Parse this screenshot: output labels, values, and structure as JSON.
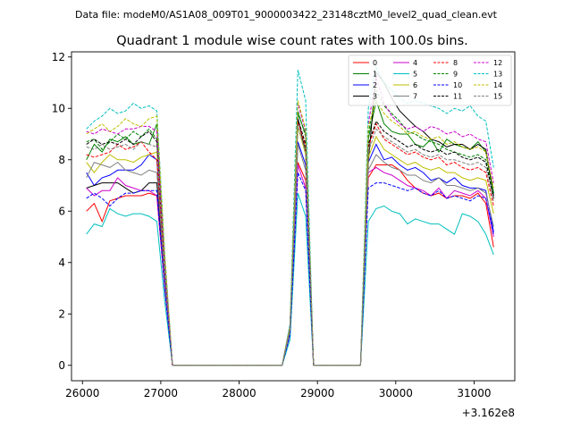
{
  "chart_data": {
    "type": "line",
    "suptitle": "Data file: modeM0/AS1A08_009T01_9000003422_23148cztM0_level2_quad_clean.evt",
    "title": "Quadrant 1 module wise count rates with 100.0s bins.",
    "xlabel": "",
    "ylabel": "",
    "x_offset_label": "+3.162e8",
    "xlim": [
      25860,
      31520
    ],
    "ylim": [
      -0.6,
      12.2
    ],
    "x_ticks": [
      26000,
      27000,
      28000,
      29000,
      30000,
      31000
    ],
    "x_tick_labels": [
      "26000",
      "27000",
      "28000",
      "29000",
      "30000",
      "31000"
    ],
    "y_ticks": [
      0,
      2,
      4,
      6,
      8,
      10,
      12
    ],
    "y_tick_labels": [
      "0",
      "2",
      "4",
      "6",
      "8",
      "10",
      "12"
    ],
    "legend_position": "top-right",
    "grid": false,
    "segments": [
      {
        "x": [
          26050,
          26150,
          26250,
          26350,
          26450,
          26550,
          26650,
          26750,
          26850,
          26950,
          27050,
          27150
        ]
      },
      {
        "x": [
          27150,
          28550
        ]
      },
      {
        "x": [
          28550,
          28650,
          28750,
          28850,
          28950
        ]
      },
      {
        "x": [
          28950,
          29550
        ]
      },
      {
        "x": [
          29550,
          29650,
          29750,
          29850,
          29950,
          30050,
          30150,
          30250,
          30350,
          30450,
          30550,
          30650,
          30750,
          30850,
          30950,
          31050,
          31150,
          31250
        ]
      }
    ],
    "series": [
      {
        "name": "0",
        "color": "#ff0000",
        "dash": "solid",
        "segments": [
          [
            6.0,
            6.3,
            5.6,
            6.4,
            6.5,
            6.6,
            6.6,
            6.6,
            6.7,
            6.6,
            3.0,
            0.0
          ],
          [
            0.0,
            0.0
          ],
          [
            0.0,
            1.5,
            7.9,
            7.2,
            0.0
          ],
          [
            0.0,
            0.0
          ],
          [
            0.0,
            7.3,
            7.8,
            7.8,
            7.8,
            7.6,
            7.2,
            6.9,
            6.7,
            6.6,
            6.7,
            6.5,
            6.6,
            6.6,
            6.5,
            6.7,
            6.3,
            4.6
          ]
        ]
      },
      {
        "name": "1",
        "color": "#008000",
        "dash": "solid",
        "segments": [
          [
            8.0,
            8.6,
            8.3,
            8.8,
            8.7,
            8.9,
            8.6,
            8.7,
            8.6,
            9.4,
            4.0,
            0.0
          ],
          [
            0.0,
            0.0
          ],
          [
            0.0,
            1.5,
            9.8,
            9.0,
            0.0
          ],
          [
            0.0,
            0.0
          ],
          [
            0.0,
            8.8,
            10.3,
            9.4,
            9.1,
            9.0,
            9.0,
            8.6,
            8.5,
            8.8,
            8.3,
            8.8,
            8.6,
            8.5,
            8.4,
            8.7,
            8.3,
            6.7
          ]
        ]
      },
      {
        "name": "2",
        "color": "#0000ff",
        "dash": "solid",
        "segments": [
          [
            7.5,
            7.0,
            7.3,
            7.4,
            7.6,
            7.6,
            7.6,
            7.8,
            8.2,
            8.0,
            3.6,
            0.0
          ],
          [
            0.0,
            0.0
          ],
          [
            0.0,
            1.3,
            8.7,
            7.8,
            0.0
          ],
          [
            0.0,
            0.0
          ],
          [
            0.0,
            7.9,
            8.6,
            8.0,
            8.1,
            7.8,
            7.6,
            7.7,
            7.5,
            7.2,
            7.3,
            7.1,
            7.3,
            7.0,
            6.9,
            6.9,
            6.8,
            5.2
          ]
        ]
      },
      {
        "name": "3",
        "color": "#000000",
        "dash": "solid",
        "segments": [
          [
            6.9,
            7.0,
            7.1,
            7.1,
            7.1,
            6.9,
            6.7,
            6.8,
            7.1,
            7.1,
            3.2,
            0.0
          ],
          [
            0.0,
            0.0
          ],
          [
            0.0,
            1.4,
            9.6,
            8.3,
            0.0
          ],
          [
            0.0,
            0.0
          ],
          [
            0.0,
            7.9,
            11.4,
            11.0,
            10.4,
            9.9,
            9.6,
            9.3,
            9.1,
            8.8,
            8.7,
            8.5,
            8.6,
            8.6,
            8.4,
            8.6,
            8.4,
            6.6
          ]
        ]
      },
      {
        "name": "4",
        "color": "#cc00cc",
        "dash": "solid",
        "segments": [
          [
            6.9,
            6.6,
            6.8,
            6.8,
            7.3,
            7.0,
            6.9,
            6.8,
            6.8,
            6.6,
            3.0,
            0.0
          ],
          [
            0.0,
            0.0
          ],
          [
            0.0,
            1.2,
            7.8,
            6.9,
            0.0
          ],
          [
            0.0,
            0.0
          ],
          [
            0.0,
            7.5,
            7.7,
            7.5,
            7.4,
            7.2,
            7.0,
            6.9,
            6.8,
            6.6,
            6.9,
            6.5,
            6.8,
            6.7,
            6.6,
            6.8,
            6.5,
            5.0
          ]
        ]
      },
      {
        "name": "5",
        "color": "#00bfbf",
        "dash": "solid",
        "segments": [
          [
            5.1,
            5.5,
            5.4,
            6.1,
            5.9,
            5.8,
            5.9,
            5.9,
            5.8,
            5.6,
            2.5,
            0.0
          ],
          [
            0.0,
            0.0
          ],
          [
            0.0,
            1.0,
            6.7,
            5.8,
            0.0
          ],
          [
            0.0,
            0.0
          ],
          [
            0.0,
            5.6,
            6.1,
            6.2,
            6.0,
            5.9,
            5.5,
            5.7,
            5.6,
            5.5,
            5.5,
            5.3,
            5.1,
            5.9,
            5.8,
            5.6,
            5.1,
            4.3
          ]
        ]
      },
      {
        "name": "6",
        "color": "#bfbf00",
        "dash": "solid",
        "segments": [
          [
            7.9,
            7.5,
            7.9,
            8.2,
            8.0,
            8.0,
            7.9,
            8.1,
            8.2,
            8.3,
            3.7,
            0.0
          ],
          [
            0.0,
            0.0
          ],
          [
            0.0,
            1.4,
            9.3,
            8.2,
            0.0
          ],
          [
            0.0,
            0.0
          ],
          [
            0.0,
            8.1,
            8.9,
            8.4,
            8.2,
            8.0,
            7.8,
            7.9,
            7.7,
            7.6,
            7.7,
            7.5,
            7.5,
            7.3,
            7.2,
            7.3,
            7.2,
            5.9
          ]
        ]
      },
      {
        "name": "7",
        "color": "#808080",
        "dash": "solid",
        "segments": [
          [
            7.3,
            7.9,
            7.8,
            7.7,
            7.9,
            7.6,
            7.5,
            7.4,
            7.6,
            7.5,
            3.4,
            0.0
          ],
          [
            0.0,
            0.0
          ],
          [
            0.0,
            1.3,
            8.6,
            7.6,
            0.0
          ],
          [
            0.0,
            0.0
          ],
          [
            0.0,
            7.6,
            8.2,
            7.9,
            7.7,
            7.6,
            7.4,
            7.4,
            7.2,
            7.1,
            7.3,
            7.0,
            7.0,
            6.9,
            6.8,
            6.9,
            6.7,
            5.4
          ]
        ]
      },
      {
        "name": "8",
        "color": "#ff0000",
        "dash": "dashed",
        "segments": [
          [
            8.2,
            8.1,
            8.2,
            8.3,
            8.6,
            8.4,
            8.5,
            8.7,
            8.3,
            8.0,
            3.8,
            0.0
          ],
          [
            0.0,
            0.0
          ],
          [
            0.0,
            1.5,
            9.5,
            8.5,
            0.0
          ],
          [
            0.0,
            0.0
          ],
          [
            0.0,
            8.5,
            9.4,
            8.8,
            8.6,
            8.4,
            8.2,
            8.3,
            8.1,
            8.0,
            8.1,
            7.8,
            7.9,
            7.7,
            7.6,
            7.7,
            7.5,
            6.2
          ]
        ]
      },
      {
        "name": "9",
        "color": "#008000",
        "dash": "dashed",
        "segments": [
          [
            8.7,
            8.8,
            8.4,
            8.7,
            9.0,
            8.8,
            9.1,
            8.9,
            9.2,
            8.8,
            4.0,
            0.0
          ],
          [
            0.0,
            0.0
          ],
          [
            0.0,
            1.5,
            9.9,
            8.9,
            0.0
          ],
          [
            0.0,
            0.0
          ],
          [
            0.0,
            9.0,
            10.7,
            10.1,
            9.8,
            9.5,
            9.1,
            9.0,
            8.8,
            8.7,
            8.6,
            8.4,
            8.3,
            8.2,
            8.1,
            8.2,
            8.0,
            6.7
          ]
        ]
      },
      {
        "name": "10",
        "color": "#0000ff",
        "dash": "dashed",
        "segments": [
          [
            6.5,
            6.7,
            6.5,
            6.2,
            6.5,
            6.7,
            6.7,
            6.8,
            6.8,
            6.8,
            3.0,
            0.0
          ],
          [
            0.0,
            0.0
          ],
          [
            0.0,
            1.2,
            7.5,
            6.8,
            0.0
          ],
          [
            0.0,
            0.0
          ],
          [
            0.0,
            6.9,
            7.1,
            7.1,
            7.0,
            6.9,
            6.8,
            6.9,
            6.7,
            6.6,
            6.8,
            6.5,
            6.6,
            6.5,
            6.4,
            6.6,
            6.5,
            5.1
          ]
        ]
      },
      {
        "name": "11",
        "color": "#000000",
        "dash": "dashed",
        "segments": [
          [
            8.6,
            8.8,
            8.6,
            8.7,
            8.6,
            8.8,
            8.6,
            8.9,
            9.1,
            8.7,
            3.9,
            0.0
          ],
          [
            0.0,
            0.0
          ],
          [
            0.0,
            1.4,
            9.6,
            8.6,
            0.0
          ],
          [
            0.0,
            0.0
          ],
          [
            0.0,
            8.6,
            9.5,
            9.1,
            8.9,
            8.7,
            8.5,
            8.6,
            8.4,
            8.3,
            8.4,
            8.2,
            8.3,
            8.1,
            8.0,
            8.1,
            7.9,
            6.5
          ]
        ]
      },
      {
        "name": "12",
        "color": "#cc00cc",
        "dash": "dashed",
        "segments": [
          [
            9.1,
            9.0,
            9.2,
            9.1,
            9.0,
            9.2,
            9.2,
            9.3,
            9.3,
            9.1,
            4.1,
            0.0
          ],
          [
            0.0,
            0.0
          ],
          [
            0.0,
            1.6,
            10.2,
            9.1,
            0.0
          ],
          [
            0.0,
            0.0
          ],
          [
            0.0,
            9.4,
            11.2,
            10.2,
            9.7,
            9.4,
            9.2,
            9.3,
            9.1,
            9.3,
            9.2,
            9.0,
            9.1,
            8.9,
            9.0,
            8.8,
            8.7,
            7.1
          ]
        ]
      },
      {
        "name": "13",
        "color": "#00bfbf",
        "dash": "dashed",
        "segments": [
          [
            9.2,
            9.5,
            9.7,
            10.0,
            9.8,
            9.9,
            10.2,
            10.0,
            10.1,
            9.9,
            4.4,
            0.0
          ],
          [
            0.0,
            0.0
          ],
          [
            0.0,
            1.6,
            11.5,
            10.3,
            0.0
          ],
          [
            0.0,
            0.0
          ],
          [
            0.0,
            10.0,
            11.6,
            11.0,
            10.7,
            10.4,
            10.2,
            10.3,
            10.2,
            10.1,
            10.0,
            9.8,
            10.0,
            9.9,
            10.1,
            9.7,
            9.5,
            7.7
          ]
        ]
      },
      {
        "name": "14",
        "color": "#bfbf00",
        "dash": "dashed",
        "segments": [
          [
            9.0,
            9.2,
            9.4,
            9.1,
            9.3,
            9.6,
            9.4,
            9.3,
            9.6,
            9.7,
            4.3,
            0.0
          ],
          [
            0.0,
            0.0
          ],
          [
            0.0,
            1.5,
            10.3,
            9.2,
            0.0
          ],
          [
            0.0,
            0.0
          ],
          [
            0.0,
            9.3,
            10.3,
            9.8,
            9.5,
            9.3,
            9.0,
            9.1,
            8.9,
            8.8,
            8.9,
            8.6,
            8.7,
            8.5,
            8.4,
            8.5,
            8.3,
            6.9
          ]
        ]
      },
      {
        "name": "15",
        "color": "#808080",
        "dash": "dashed",
        "segments": [
          [
            8.5,
            8.4,
            8.6,
            8.4,
            8.5,
            8.6,
            8.4,
            8.7,
            8.6,
            8.5,
            3.8,
            0.0
          ],
          [
            0.0,
            0.0
          ],
          [
            0.0,
            1.4,
            9.3,
            8.3,
            0.0
          ],
          [
            0.0,
            0.0
          ],
          [
            0.0,
            8.3,
            9.2,
            8.9,
            8.7,
            8.5,
            8.3,
            8.4,
            8.2,
            8.1,
            8.2,
            8.0,
            8.0,
            7.9,
            7.8,
            7.9,
            7.7,
            6.4
          ]
        ]
      }
    ]
  }
}
